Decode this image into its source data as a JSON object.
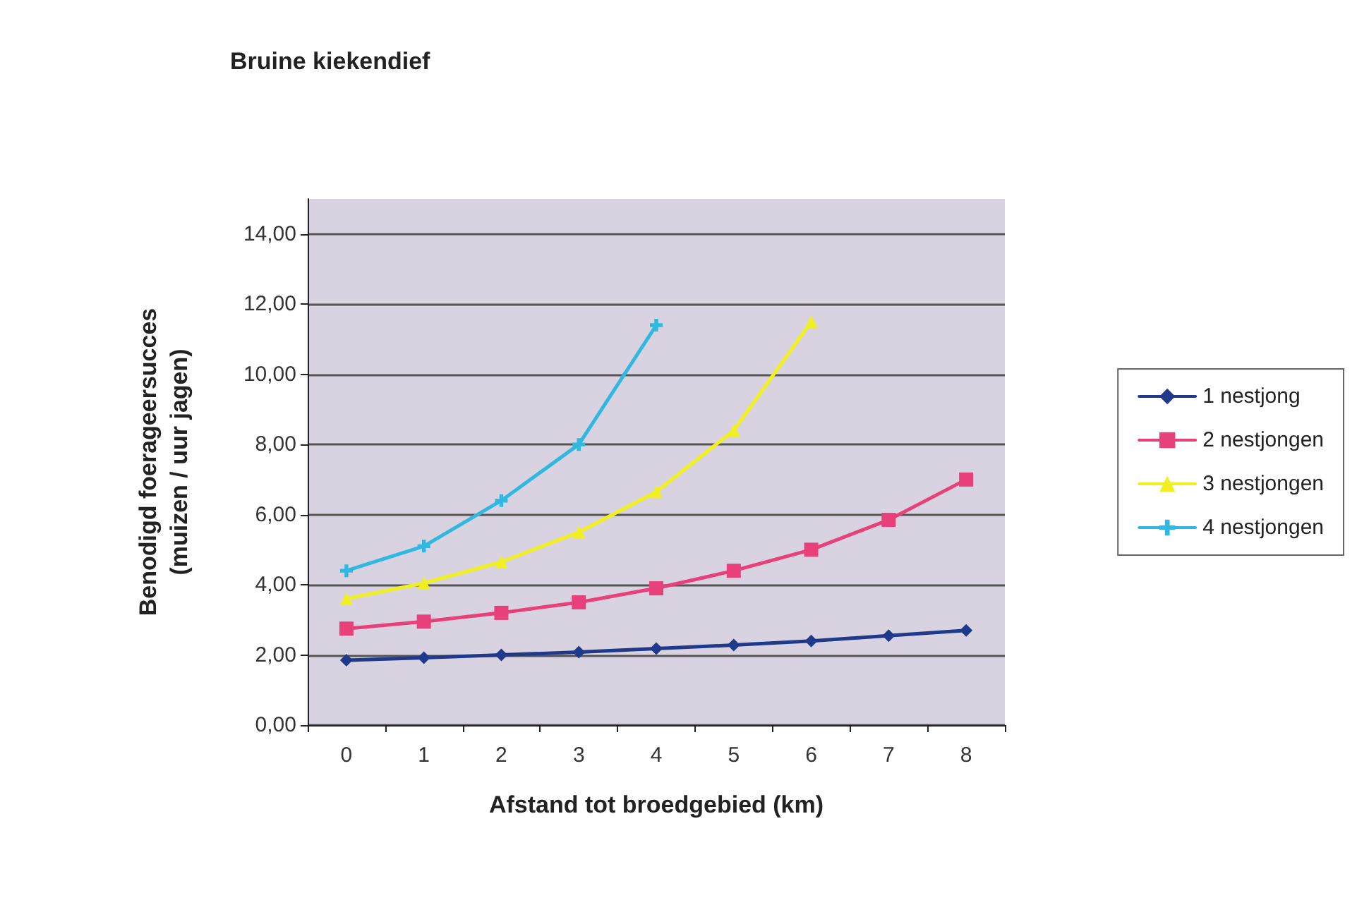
{
  "chart_data": {
    "type": "line",
    "title": "Bruine kiekendief",
    "xlabel": "Afstand tot broedgebied (km)",
    "ylabel": "Benodigd foerageersucces\n(muizen / uur jagen)",
    "categories": [
      "0",
      "1",
      "2",
      "3",
      "4",
      "5",
      "6",
      "7",
      "8"
    ],
    "series": [
      {
        "name": "1 nestjong",
        "color": "#1f3a8a",
        "marker": "diamond",
        "values": [
          1.85,
          1.92,
          2.0,
          2.08,
          2.18,
          2.28,
          2.4,
          2.55,
          2.7
        ]
      },
      {
        "name": "2 nestjongen",
        "color": "#e8407a",
        "marker": "square",
        "values": [
          2.75,
          2.95,
          3.2,
          3.5,
          3.9,
          4.4,
          5.0,
          5.85,
          7.0
        ]
      },
      {
        "name": "3 nestjongen",
        "color": "#f0f020",
        "marker": "triangle",
        "values": [
          3.6,
          4.05,
          4.65,
          5.5,
          6.65,
          8.4,
          11.5,
          null,
          null
        ]
      },
      {
        "name": "4 nestjongen",
        "color": "#30b8e0",
        "marker": "cross",
        "values": [
          4.4,
          5.1,
          6.4,
          8.0,
          11.4,
          null,
          null,
          null,
          null
        ]
      }
    ],
    "ylim": [
      0,
      15
    ],
    "yticks": [
      {
        "value": 0,
        "label": "0,00"
      },
      {
        "value": 2,
        "label": "2,00"
      },
      {
        "value": 4,
        "label": "4,00"
      },
      {
        "value": 6,
        "label": "6,00"
      },
      {
        "value": 8,
        "label": "8,00"
      },
      {
        "value": 10,
        "label": "10,00"
      },
      {
        "value": 12,
        "label": "12,00"
      },
      {
        "value": 14,
        "label": "14,00"
      }
    ],
    "grid": "y",
    "legend": "right"
  }
}
